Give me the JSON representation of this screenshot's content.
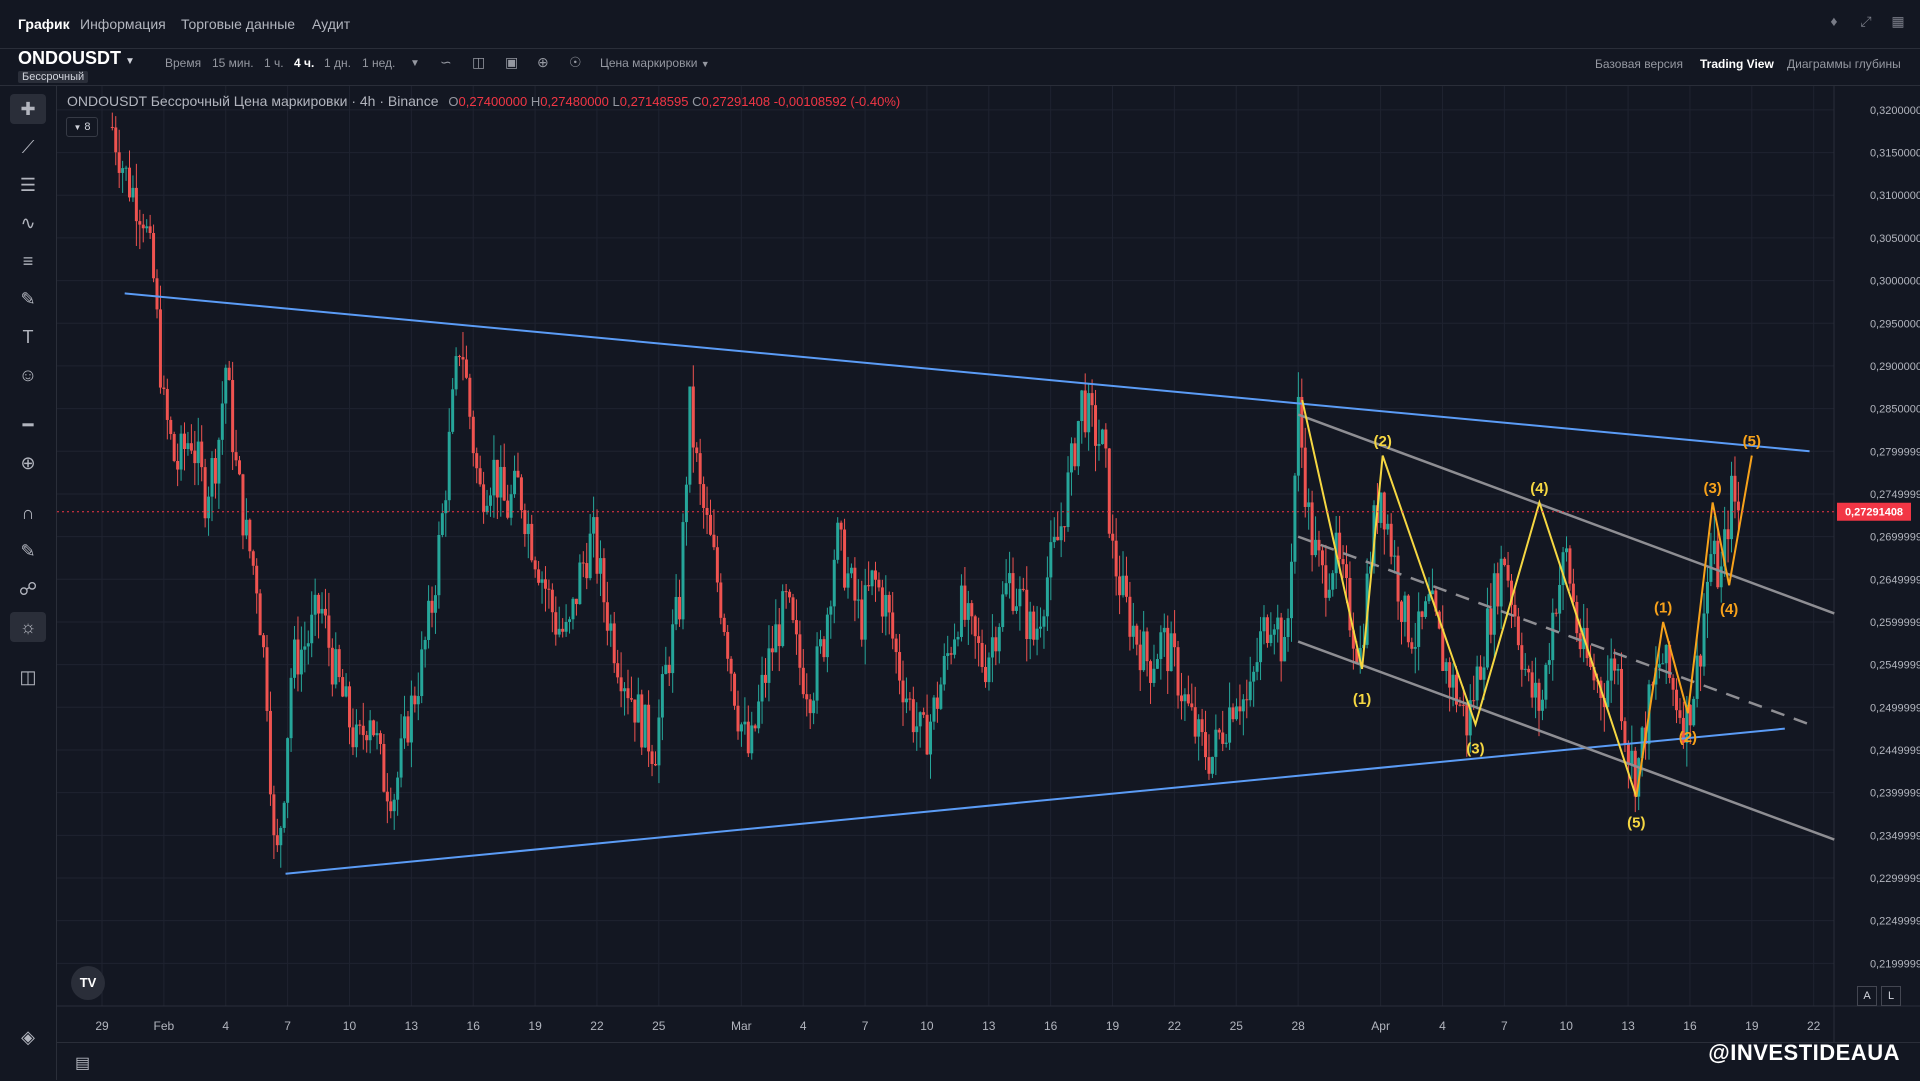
{
  "top_tabs": [
    "График",
    "Информация",
    "Торговые данные",
    "Аудит"
  ],
  "symbol": {
    "name": "ONDOUSDT",
    "type": "Бессрочный"
  },
  "timeframes": {
    "label": "Время",
    "items": [
      "15 мин.",
      "1 ч.",
      "4 ч.",
      "1 дн.",
      "1 нед."
    ],
    "active": "4 ч."
  },
  "price_source": "Цена маркировки",
  "view_tabs": [
    "Базовая версия",
    "Trading View",
    "Диаграммы глубины"
  ],
  "active_view": "Trading View",
  "legend": {
    "title": "ONDOUSDT Бессрочный Цена маркировки · 4h · Binance",
    "o_label": "O",
    "o": "0,27400000",
    "h_label": "H",
    "h": "0,27480000",
    "l_label": "L",
    "l": "0,27148595",
    "c_label": "C",
    "c": "0,27291408",
    "change": "-0,00108592 (-0.40%)"
  },
  "indicator_count": "8",
  "logo_text": "TV",
  "axis_buttons": {
    "a": "A",
    "l": "L"
  },
  "watermark": "@INVESTIDEAUA",
  "colors": {
    "up": "#26a69a",
    "down": "#ef5350",
    "trend": "#5b9cf6",
    "channel": "#8e8e93",
    "wave_yellow": "#f5d742",
    "wave_orange": "#f7a21b",
    "price_label": "#f23645"
  },
  "chart_data": {
    "type": "candlestick",
    "y_range": [
      0.215,
      0.3228
    ],
    "y_ticks": [
      "0,32000000",
      "0,31500000",
      "0,31000000",
      "0,30500000",
      "0,30000000",
      "0,29500000",
      "0,29000000",
      "0,28500000",
      "0,27999999",
      "0,27499999",
      "0,26999999",
      "0,26499999",
      "0,25999999",
      "0,25499999",
      "0,24999999",
      "0,24499999",
      "0,23999999",
      "0,23499999",
      "0,22999999",
      "0,22499999",
      "0,21999999"
    ],
    "y_tick_values": [
      0.32,
      0.315,
      0.31,
      0.305,
      0.3,
      0.295,
      0.29,
      0.285,
      0.28,
      0.275,
      0.27,
      0.265,
      0.26,
      0.255,
      0.25,
      0.245,
      0.24,
      0.235,
      0.23,
      0.225,
      0.22
    ],
    "x_range": [
      0,
      83.5
    ],
    "x_ticks": [
      {
        "label": "29",
        "x": 0
      },
      {
        "label": "Feb",
        "x": 3
      },
      {
        "label": "4",
        "x": 6
      },
      {
        "label": "7",
        "x": 9
      },
      {
        "label": "10",
        "x": 12
      },
      {
        "label": "13",
        "x": 15
      },
      {
        "label": "16",
        "x": 18
      },
      {
        "label": "19",
        "x": 21
      },
      {
        "label": "22",
        "x": 24
      },
      {
        "label": "25",
        "x": 27
      },
      {
        "label": "Mar",
        "x": 31
      },
      {
        "label": "4",
        "x": 34
      },
      {
        "label": "7",
        "x": 37
      },
      {
        "label": "10",
        "x": 40
      },
      {
        "label": "13",
        "x": 43
      },
      {
        "label": "16",
        "x": 46
      },
      {
        "label": "19",
        "x": 49
      },
      {
        "label": "22",
        "x": 52
      },
      {
        "label": "25",
        "x": 55
      },
      {
        "label": "28",
        "x": 58
      },
      {
        "label": "Apr",
        "x": 62
      },
      {
        "label": "4",
        "x": 65
      },
      {
        "label": "7",
        "x": 68
      },
      {
        "label": "10",
        "x": 71
      },
      {
        "label": "13",
        "x": 74
      },
      {
        "label": "16",
        "x": 77
      },
      {
        "label": "19",
        "x": 80
      },
      {
        "label": "22",
        "x": 83
      }
    ],
    "last_price": 0.27291408,
    "last_price_label": "0,27291408",
    "price_path": [
      [
        0.5,
        0.318
      ],
      [
        1.2,
        0.312
      ],
      [
        2.0,
        0.308
      ],
      [
        2.5,
        0.3
      ],
      [
        3.0,
        0.285
      ],
      [
        3.6,
        0.278
      ],
      [
        4.3,
        0.282
      ],
      [
        5.0,
        0.275
      ],
      [
        5.6,
        0.28
      ],
      [
        6.0,
        0.29
      ],
      [
        6.5,
        0.278
      ],
      [
        7.0,
        0.27
      ],
      [
        7.5,
        0.265
      ],
      [
        8.0,
        0.252
      ],
      [
        8.4,
        0.23
      ],
      [
        8.8,
        0.24
      ],
      [
        9.2,
        0.255
      ],
      [
        10.0,
        0.258
      ],
      [
        10.6,
        0.262
      ],
      [
        11.2,
        0.255
      ],
      [
        11.8,
        0.25
      ],
      [
        12.4,
        0.245
      ],
      [
        13.0,
        0.25
      ],
      [
        13.6,
        0.242
      ],
      [
        14.2,
        0.24
      ],
      [
        14.8,
        0.248
      ],
      [
        15.5,
        0.255
      ],
      [
        16.0,
        0.262
      ],
      [
        16.5,
        0.272
      ],
      [
        17.0,
        0.285
      ],
      [
        17.4,
        0.294
      ],
      [
        17.8,
        0.285
      ],
      [
        18.3,
        0.275
      ],
      [
        19.0,
        0.278
      ],
      [
        19.6,
        0.273
      ],
      [
        20.2,
        0.276
      ],
      [
        20.8,
        0.27
      ],
      [
        21.4,
        0.265
      ],
      [
        22.0,
        0.26
      ],
      [
        22.6,
        0.258
      ],
      [
        23.2,
        0.266
      ],
      [
        23.8,
        0.27
      ],
      [
        24.4,
        0.262
      ],
      [
        25.0,
        0.256
      ],
      [
        25.6,
        0.252
      ],
      [
        26.2,
        0.248
      ],
      [
        26.8,
        0.245
      ],
      [
        27.4,
        0.255
      ],
      [
        28.0,
        0.262
      ],
      [
        28.5,
        0.285
      ],
      [
        29.0,
        0.275
      ],
      [
        29.6,
        0.268
      ],
      [
        30.2,
        0.26
      ],
      [
        30.8,
        0.25
      ],
      [
        31.4,
        0.244
      ],
      [
        32.0,
        0.252
      ],
      [
        32.6,
        0.258
      ],
      [
        33.2,
        0.262
      ],
      [
        33.8,
        0.255
      ],
      [
        34.4,
        0.252
      ],
      [
        35.0,
        0.258
      ],
      [
        35.6,
        0.27
      ],
      [
        36.2,
        0.265
      ],
      [
        36.8,
        0.26
      ],
      [
        37.4,
        0.265
      ],
      [
        38.0,
        0.262
      ],
      [
        38.6,
        0.255
      ],
      [
        39.2,
        0.25
      ],
      [
        39.8,
        0.246
      ],
      [
        40.4,
        0.25
      ],
      [
        41.0,
        0.256
      ],
      [
        41.6,
        0.262
      ],
      [
        42.2,
        0.258
      ],
      [
        42.8,
        0.255
      ],
      [
        43.4,
        0.26
      ],
      [
        44.0,
        0.265
      ],
      [
        44.6,
        0.262
      ],
      [
        45.2,
        0.258
      ],
      [
        45.8,
        0.265
      ],
      [
        46.4,
        0.27
      ],
      [
        47.0,
        0.278
      ],
      [
        47.5,
        0.286
      ],
      [
        48.0,
        0.283
      ],
      [
        48.6,
        0.28
      ],
      [
        49.0,
        0.268
      ],
      [
        49.6,
        0.262
      ],
      [
        50.2,
        0.258
      ],
      [
        50.8,
        0.255
      ],
      [
        51.4,
        0.258
      ],
      [
        52.0,
        0.255
      ],
      [
        52.6,
        0.25
      ],
      [
        53.2,
        0.246
      ],
      [
        53.8,
        0.244
      ],
      [
        54.4,
        0.248
      ],
      [
        55.0,
        0.252
      ],
      [
        55.6,
        0.25
      ],
      [
        56.2,
        0.258
      ],
      [
        56.8,
        0.262
      ],
      [
        57.4,
        0.255
      ],
      [
        58.0,
        0.285
      ],
      [
        58.6,
        0.27
      ],
      [
        59.2,
        0.265
      ],
      [
        59.8,
        0.268
      ],
      [
        60.4,
        0.262
      ],
      [
        61.0,
        0.256
      ],
      [
        61.6,
        0.27
      ],
      [
        62.0,
        0.276
      ],
      [
        62.6,
        0.268
      ],
      [
        63.2,
        0.26
      ],
      [
        63.8,
        0.258
      ],
      [
        64.4,
        0.262
      ],
      [
        65.0,
        0.256
      ],
      [
        65.6,
        0.252
      ],
      [
        66.2,
        0.248
      ],
      [
        66.8,
        0.255
      ],
      [
        67.4,
        0.262
      ],
      [
        68.0,
        0.268
      ],
      [
        68.6,
        0.26
      ],
      [
        69.2,
        0.252
      ],
      [
        69.8,
        0.25
      ],
      [
        70.4,
        0.262
      ],
      [
        71.0,
        0.268
      ],
      [
        71.6,
        0.258
      ],
      [
        72.2,
        0.254
      ],
      [
        72.8,
        0.252
      ],
      [
        73.4,
        0.256
      ],
      [
        74.0,
        0.245
      ],
      [
        74.4,
        0.242
      ],
      [
        75.0,
        0.25
      ],
      [
        75.6,
        0.256
      ],
      [
        76.2,
        0.252
      ],
      [
        76.8,
        0.248
      ],
      [
        77.4,
        0.255
      ],
      [
        78.0,
        0.268
      ],
      [
        78.5,
        0.265
      ],
      [
        79.0,
        0.275
      ],
      [
        79.5,
        0.272
      ]
    ],
    "trendlines": [
      {
        "name": "upper-trendline",
        "from": [
          1.1,
          0.2985
        ],
        "to": [
          82.8,
          0.28
        ],
        "color": "#5b9cf6"
      },
      {
        "name": "lower-trendline",
        "from": [
          8.9,
          0.2305
        ],
        "to": [
          81.6,
          0.2475
        ],
        "color": "#5b9cf6"
      }
    ],
    "channel_lines": [
      {
        "name": "channel-upper",
        "from": [
          58.0,
          0.2843
        ],
        "to": [
          84.0,
          0.261
        ],
        "dashed": false
      },
      {
        "name": "channel-mid",
        "from": [
          58.0,
          0.27
        ],
        "to": [
          82.8,
          0.248
        ],
        "dashed": true
      },
      {
        "name": "channel-lower",
        "from": [
          58.0,
          0.2577
        ],
        "to": [
          84.0,
          0.2345
        ],
        "dashed": false
      }
    ],
    "waves": [
      {
        "name": "wave-yellow",
        "color": "#f5d742",
        "points": [
          [
            58.2,
            0.286
          ],
          [
            61.1,
            0.2545
          ],
          [
            62.1,
            0.2795
          ],
          [
            66.6,
            0.248
          ],
          [
            69.7,
            0.274
          ],
          [
            74.4,
            0.2395
          ]
        ],
        "labels": [
          {
            "text": "(1)",
            "x": 61.1,
            "y": 0.251
          },
          {
            "text": "(2)",
            "x": 62.1,
            "y": 0.2812
          },
          {
            "text": "(3)",
            "x": 66.6,
            "y": 0.2452
          },
          {
            "text": "(4)",
            "x": 69.7,
            "y": 0.2757
          },
          {
            "text": "(5)",
            "x": 74.4,
            "y": 0.2365
          }
        ]
      },
      {
        "name": "wave-orange",
        "color": "#f7a21b",
        "points": [
          [
            74.4,
            0.2395
          ],
          [
            75.7,
            0.26
          ],
          [
            76.9,
            0.2493
          ],
          [
            78.1,
            0.274
          ],
          [
            78.9,
            0.2643
          ],
          [
            80.0,
            0.2795
          ]
        ],
        "labels": [
          {
            "text": "(1)",
            "x": 75.7,
            "y": 0.2617
          },
          {
            "text": "(2)",
            "x": 76.9,
            "y": 0.2465
          },
          {
            "text": "(3)",
            "x": 78.1,
            "y": 0.2757
          },
          {
            "text": "(4)",
            "x": 78.9,
            "y": 0.2615
          },
          {
            "text": "(5)",
            "x": 80.0,
            "y": 0.2812
          }
        ]
      }
    ]
  }
}
